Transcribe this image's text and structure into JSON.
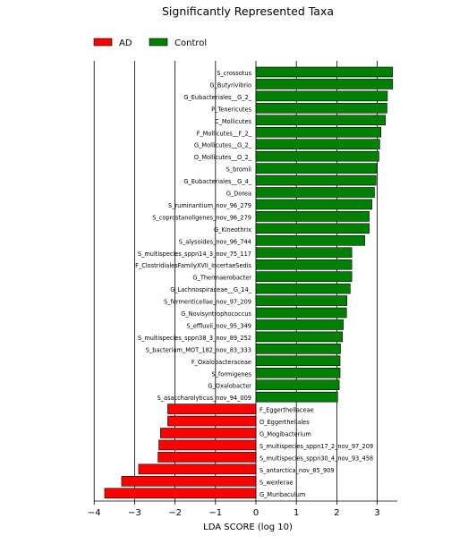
{
  "chart_data": {
    "type": "bar",
    "orientation": "horizontal",
    "title": "Significantly Represented Taxa",
    "xlabel": "LDA SCORE (log 10)",
    "ylabel": "",
    "xlim": [
      -4,
      3.5
    ],
    "xticks": [
      -4,
      -3,
      -2,
      -1,
      0,
      1,
      2,
      3
    ],
    "xtick_labels": [
      "−4",
      "−3",
      "−2",
      "−1",
      "0",
      "1",
      "2",
      "3"
    ],
    "grid": "vertical lines at integer ticks",
    "legend_placement": "top-left",
    "legend": [
      {
        "name": "AD",
        "color": "#ff0000"
      },
      {
        "name": "Control",
        "color": "#008000"
      }
    ],
    "categories": [
      "S_crossotus",
      "G_Butyrivibrio",
      "G_Eubacteriales__G_2_",
      "P_Tenericutes",
      "C_Mollicutes",
      "F_Mollicutes__F_2_",
      "G_Mollicutes__G_2_",
      "O_Mollicutes__O_2_",
      "S_bromii",
      "G_Eubacteriales__G_4_",
      "G_Dorea",
      "S_ruminantium_nov_96_279",
      "S_coprostanoligenes_nov_96_279",
      "G_Kineothrix",
      "S_alysoides_nov_96_744",
      "S_multispecies_sppn14_3_nov_75_117",
      "F_ClostridialesFamilyXVII_IncertaeSedis",
      "G_Thermaerobacter",
      "G_Lachnospiraceae__G_14_",
      "S_fermenticellae_nov_97_209",
      "G_Novisyntrophococcus",
      "S_effluvii_nov_95_349",
      "S_multispecies_sppn38_3_nov_89_252",
      "S_bacterium_MOT_182_nov_83_333",
      "F_Oxalobacteraceae",
      "S_formigenes",
      "G_Oxalobacter",
      "S_asaccharolyticus_nov_94_009",
      "F_Eggerthellaceae",
      "O_Eggerthellales",
      "G_Mogibacterium",
      "S_multispecies_sppn17_2_nov_97_209",
      "S_multispecies_sppn30_4_nov_93_458",
      "S_antarctica_nov_85_909",
      "S_wexlerae",
      "G_Muribaculum"
    ],
    "values": [
      3.38,
      3.38,
      3.25,
      3.24,
      3.2,
      3.09,
      3.06,
      3.04,
      2.99,
      2.97,
      2.93,
      2.87,
      2.8,
      2.8,
      2.69,
      2.37,
      2.37,
      2.37,
      2.33,
      2.25,
      2.24,
      2.16,
      2.14,
      2.09,
      2.08,
      2.08,
      2.06,
      2.02,
      -2.18,
      -2.18,
      -2.36,
      -2.4,
      -2.42,
      -2.9,
      -3.32,
      -3.74
    ],
    "groups": [
      "Control",
      "Control",
      "Control",
      "Control",
      "Control",
      "Control",
      "Control",
      "Control",
      "Control",
      "Control",
      "Control",
      "Control",
      "Control",
      "Control",
      "Control",
      "Control",
      "Control",
      "Control",
      "Control",
      "Control",
      "Control",
      "Control",
      "Control",
      "Control",
      "Control",
      "Control",
      "Control",
      "Control",
      "AD",
      "AD",
      "AD",
      "AD",
      "AD",
      "AD",
      "AD",
      "AD"
    ]
  }
}
